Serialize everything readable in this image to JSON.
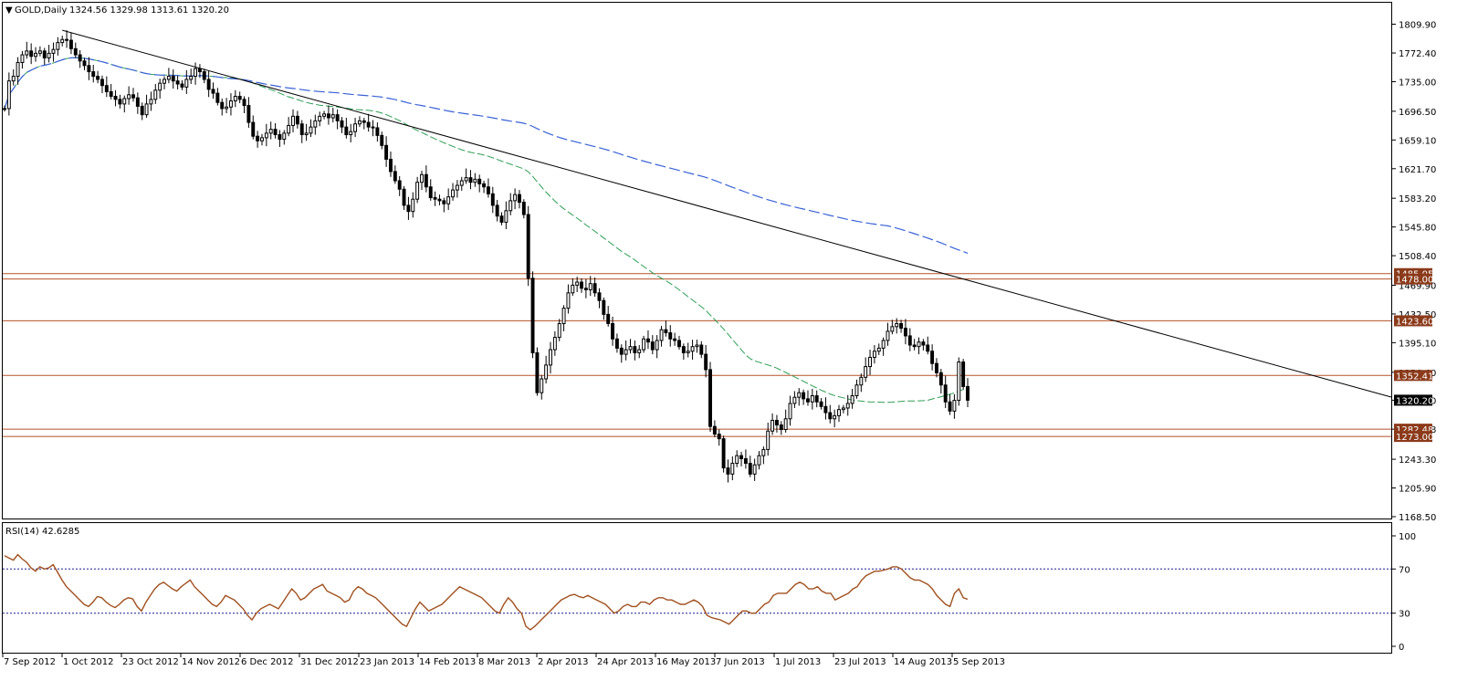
{
  "header": {
    "symbol": "GOLD,Daily",
    "ohlc": "1324.56 1329.98 1313.61 1320.20"
  },
  "rsi_panel": {
    "label": "RSI(14) 42.6285"
  },
  "colors": {
    "candle": "#000000",
    "trendline": "#000000",
    "ma_short": "#2e9e55",
    "ma_long": "#3a62d6",
    "level_line": "#b5522a",
    "level_tag": "#8b3a1a",
    "price_tag": "#000000",
    "rsi_line": "#a0501e",
    "rsi_level": "#1b1b8f"
  },
  "chart_data": [
    {
      "type": "candlestick",
      "name": "price",
      "ylim": [
        1168.5,
        1820
      ],
      "y_ticks": [
        "1809.90",
        "1772.40",
        "1735.00",
        "1696.50",
        "1659.10",
        "1621.70",
        "1583.20",
        "1545.80",
        "1508.40",
        "1469.90",
        "1432.50",
        "1395.10",
        "1356.60",
        "1320.20",
        "1282.48",
        "1243.30",
        "1205.90",
        "1168.50"
      ],
      "x_ticks": [
        "7 Sep 2012",
        "1 Oct 2012",
        "23 Oct 2012",
        "14 Nov 2012",
        "6 Dec 2012",
        "31 Dec 2012",
        "23 Jan 2013",
        "14 Feb 2013",
        "8 Mar 2013",
        "2 Apr 2013",
        "24 Apr 2013",
        "16 May 2013",
        "7 Jun 2013",
        "1 Jul 2013",
        "23 Jul 2013",
        "14 Aug 2013",
        "5 Sep 2013"
      ],
      "closes": [
        1700,
        1736,
        1742,
        1760,
        1770,
        1775,
        1768,
        1772,
        1775,
        1766,
        1772,
        1777,
        1786,
        1790,
        1789,
        1778,
        1770,
        1762,
        1756,
        1748,
        1742,
        1738,
        1730,
        1722,
        1716,
        1712,
        1706,
        1713,
        1718,
        1714,
        1703,
        1692,
        1706,
        1712,
        1724,
        1733,
        1738,
        1742,
        1736,
        1732,
        1728,
        1738,
        1742,
        1752,
        1748,
        1738,
        1725,
        1720,
        1708,
        1700,
        1702,
        1710,
        1716,
        1712,
        1704,
        1682,
        1664,
        1658,
        1662,
        1668,
        1673,
        1666,
        1660,
        1668,
        1678,
        1690,
        1680,
        1666,
        1668,
        1676,
        1684,
        1690,
        1693,
        1688,
        1692,
        1684,
        1676,
        1666,
        1670,
        1680,
        1684,
        1682,
        1676,
        1675,
        1665,
        1652,
        1634,
        1618,
        1606,
        1595,
        1574,
        1566,
        1582,
        1604,
        1614,
        1598,
        1584,
        1582,
        1580,
        1576,
        1585,
        1594,
        1600,
        1606,
        1610,
        1604,
        1608,
        1602,
        1598,
        1589,
        1574,
        1560,
        1552,
        1567,
        1580,
        1588,
        1578,
        1562,
        1479,
        1382,
        1330,
        1348,
        1366,
        1386,
        1402,
        1420,
        1440,
        1460,
        1470,
        1474,
        1466,
        1464,
        1472,
        1460,
        1450,
        1432,
        1420,
        1400,
        1388,
        1380,
        1386,
        1390,
        1382,
        1386,
        1400,
        1396,
        1386,
        1398,
        1412,
        1408,
        1400,
        1398,
        1390,
        1382,
        1384,
        1390,
        1392,
        1380,
        1360,
        1286,
        1276,
        1270,
        1232,
        1224,
        1238,
        1248,
        1244,
        1238,
        1224,
        1236,
        1248,
        1256,
        1280,
        1294,
        1288,
        1282,
        1296,
        1316,
        1324,
        1330,
        1322,
        1318,
        1326,
        1318,
        1312,
        1304,
        1296,
        1300,
        1308,
        1310,
        1316,
        1326,
        1340,
        1350,
        1364,
        1376,
        1384,
        1388,
        1398,
        1410,
        1416,
        1420,
        1414,
        1404,
        1392,
        1390,
        1396,
        1392,
        1384,
        1368,
        1356,
        1340,
        1318,
        1306,
        1320,
        1370,
        1338,
        1320.2
      ],
      "levels": [
        {
          "label": "1485.05",
          "value": 1485.05
        },
        {
          "label": "1478.00",
          "value": 1478.0
        },
        {
          "label": "1423.60",
          "value": 1423.6
        },
        {
          "label": "1352.41",
          "value": 1352.41
        },
        {
          "label": "1282.48",
          "value": 1282.48
        },
        {
          "label": "1273.00",
          "value": 1273.0
        }
      ],
      "current_price": {
        "label": "1320.20",
        "value": 1320.2
      }
    },
    {
      "type": "line",
      "name": "rsi",
      "ylim": [
        0,
        100
      ],
      "y_ticks": [
        "100",
        "70",
        "30",
        "0"
      ],
      "levels": [
        70,
        30
      ],
      "values": [
        82,
        80,
        78,
        83,
        79,
        76,
        71,
        68,
        72,
        70,
        71,
        74,
        67,
        60,
        54,
        50,
        46,
        42,
        38,
        36,
        40,
        45,
        44,
        40,
        37,
        35,
        38,
        42,
        44,
        43,
        36,
        32,
        40,
        46,
        52,
        56,
        58,
        55,
        52,
        50,
        54,
        57,
        60,
        54,
        50,
        46,
        42,
        38,
        36,
        40,
        46,
        44,
        42,
        38,
        34,
        28,
        24,
        30,
        34,
        36,
        38,
        36,
        34,
        40,
        46,
        52,
        48,
        42,
        44,
        48,
        52,
        54,
        56,
        50,
        48,
        46,
        44,
        40,
        42,
        50,
        54,
        52,
        48,
        46,
        44,
        40,
        36,
        32,
        28,
        24,
        20,
        18,
        26,
        34,
        40,
        36,
        32,
        34,
        36,
        38,
        42,
        46,
        50,
        54,
        52,
        50,
        48,
        46,
        44,
        40,
        36,
        32,
        30,
        38,
        44,
        40,
        34,
        30,
        18,
        15,
        18,
        22,
        26,
        30,
        34,
        38,
        42,
        44,
        46,
        47,
        45,
        44,
        46,
        44,
        42,
        40,
        38,
        34,
        30,
        32,
        36,
        38,
        36,
        36,
        40,
        40,
        38,
        42,
        44,
        44,
        42,
        42,
        40,
        38,
        38,
        40,
        42,
        40,
        36,
        28,
        26,
        25,
        24,
        22,
        20,
        24,
        28,
        32,
        32,
        30,
        30,
        34,
        38,
        40,
        46,
        48,
        48,
        48,
        52,
        56,
        58,
        56,
        52,
        52,
        54,
        50,
        48,
        48,
        42,
        44,
        46,
        48,
        52,
        54,
        60,
        64,
        66,
        68,
        68,
        69,
        70,
        72,
        72,
        70,
        66,
        62,
        60,
        60,
        58,
        56,
        52,
        46,
        42,
        38,
        36,
        48,
        52,
        44,
        42.6
      ]
    }
  ]
}
